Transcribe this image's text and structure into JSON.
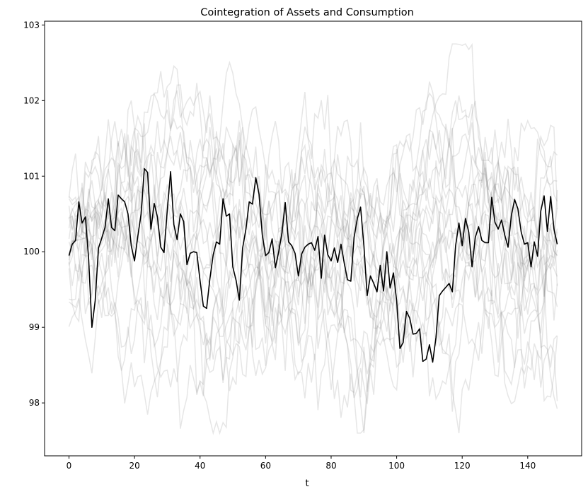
{
  "chart_data": {
    "type": "line",
    "title": "Cointegration of Assets and Consumption",
    "xlabel": "t",
    "ylabel": "",
    "xlim": [
      -7.45,
      156.45
    ],
    "ylim": [
      97.3,
      103.05
    ],
    "xticks": [
      0,
      20,
      40,
      60,
      80,
      100,
      120,
      140
    ],
    "yticks": [
      98,
      99,
      100,
      101,
      102,
      103
    ],
    "xtick_labels": [
      "0",
      "20",
      "40",
      "60",
      "80",
      "100",
      "120",
      "140"
    ],
    "ytick_labels": [
      "98",
      "99",
      "100",
      "101",
      "102",
      "103"
    ],
    "grid": false,
    "legend": "none",
    "background_series_count": 20,
    "background_series_style": {
      "color": "#808080",
      "alpha": 0.2
    },
    "highlight_series": {
      "color": "#000000",
      "x_start": 0,
      "values": [
        99.95,
        100.1,
        100.15,
        100.66,
        100.38,
        100.46,
        99.9,
        99.0,
        99.35,
        100.05,
        100.18,
        100.32,
        100.7,
        100.32,
        100.28,
        100.75,
        100.7,
        100.66,
        100.5,
        100.08,
        99.88,
        100.2,
        100.5,
        101.1,
        101.05,
        100.3,
        100.64,
        100.46,
        100.06,
        99.99,
        100.55,
        101.06,
        100.36,
        100.16,
        100.5,
        100.4,
        99.83,
        99.98,
        100.0,
        99.99,
        99.62,
        99.28,
        99.25,
        99.64,
        99.96,
        100.13,
        100.1,
        100.7,
        100.47,
        100.5,
        99.8,
        99.62,
        99.36,
        100.05,
        100.3,
        100.66,
        100.63,
        100.98,
        100.76,
        100.22,
        99.95,
        99.99,
        100.17,
        99.79,
        100.0,
        100.25,
        100.65,
        100.13,
        100.08,
        99.98,
        99.68,
        99.97,
        100.06,
        100.1,
        100.12,
        100.02,
        100.2,
        99.65,
        100.22,
        99.96,
        99.88,
        100.05,
        99.86,
        100.1,
        99.85,
        99.63,
        99.61,
        100.19,
        100.44,
        100.59,
        100.08,
        99.42,
        99.68,
        99.58,
        99.47,
        99.82,
        99.48,
        100.0,
        99.52,
        99.72,
        99.35,
        98.72,
        98.8,
        99.21,
        99.12,
        98.91,
        98.92,
        98.98,
        98.55,
        98.58,
        98.77,
        98.54,
        98.87,
        99.42,
        99.48,
        99.53,
        99.58,
        99.47,
        100.08,
        100.38,
        100.08,
        100.44,
        100.26,
        99.8,
        100.19,
        100.33,
        100.15,
        100.12,
        100.12,
        100.72,
        100.39,
        100.3,
        100.42,
        100.22,
        100.06,
        100.48,
        100.69,
        100.57,
        100.26,
        100.1,
        100.12,
        99.8,
        100.13,
        99.94,
        100.54,
        100.74,
        100.27,
        100.73,
        100.3,
        100.1
      ]
    }
  }
}
